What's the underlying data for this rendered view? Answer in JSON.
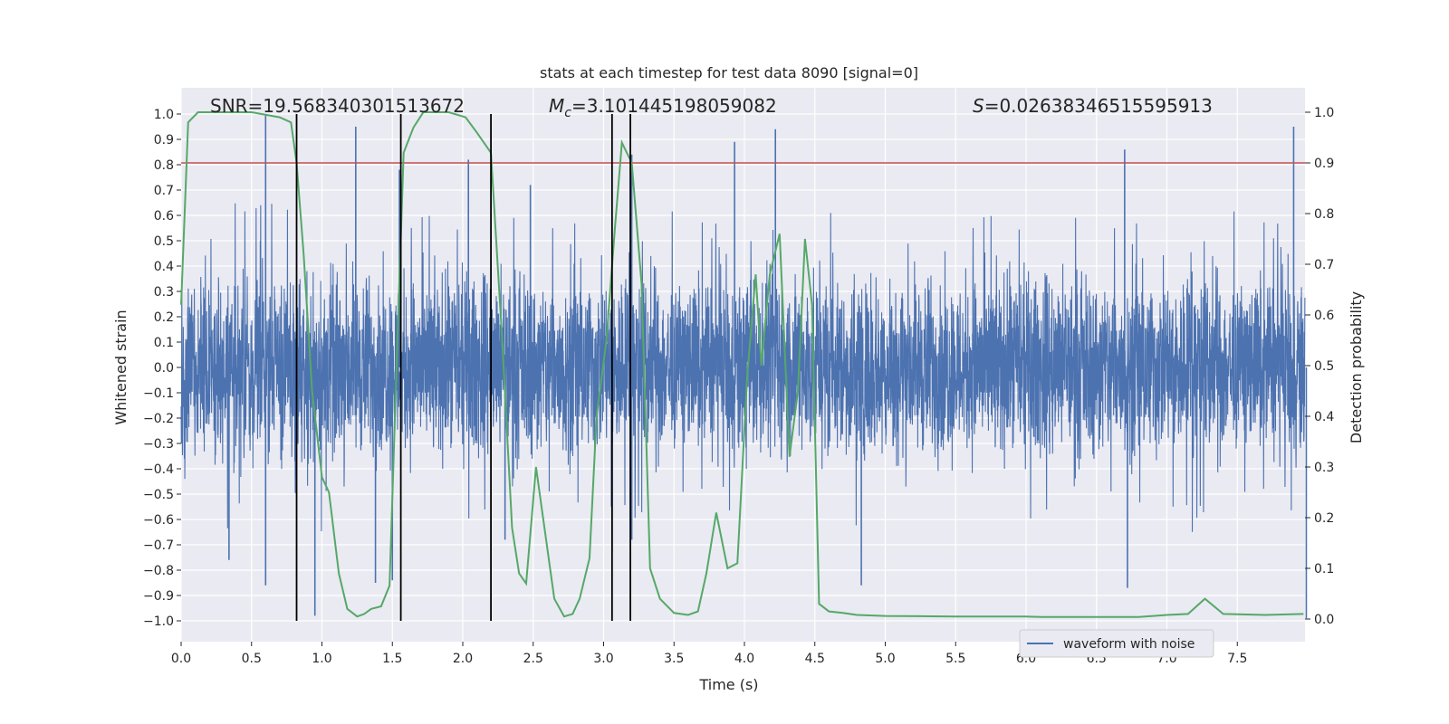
{
  "chart_data": {
    "type": "line",
    "title": "stats at each timestep for test data 8090 [signal=0]",
    "xlabel": "Time (s)",
    "ylabel": "Whitened strain",
    "ylabel_right": "Detection probability",
    "xlim": [
      0.0,
      7.98
    ],
    "ylim": [
      -1.1,
      1.1
    ],
    "ylim_right": [
      -0.01,
      1.03
    ],
    "x_ticks": [
      "0.0",
      "0.5",
      "1.0",
      "1.5",
      "2.0",
      "2.5",
      "3.0",
      "3.5",
      "4.0",
      "4.5",
      "5.0",
      "5.5",
      "6.0",
      "6.5",
      "7.0",
      "7.5"
    ],
    "y_ticks": [
      "1.0",
      "0.9",
      "0.8",
      "0.7",
      "0.6",
      "0.5",
      "0.4",
      "0.3",
      "0.2",
      "0.1",
      "0.0",
      "−0.1",
      "−0.2",
      "−0.3",
      "−0.4",
      "−0.5",
      "−0.6",
      "−0.7",
      "−0.8",
      "−0.9",
      "−1.0"
    ],
    "y_right_ticks": [
      "1.0",
      "0.9",
      "0.8",
      "0.7",
      "0.6",
      "0.5",
      "0.4",
      "0.3",
      "0.2",
      "0.1",
      "0.0"
    ],
    "stats": {
      "snr": "SNR=19.568340301513672",
      "mc_symbol": "M",
      "mc_subscript": "c",
      "mc_value": "=3.101445198059082",
      "s_symbol": "S",
      "s_value": "=0.02638346515595913"
    },
    "threshold": 0.9,
    "threshold_color": "#c44e52",
    "vertical_lines": [
      0.82,
      1.56,
      2.2,
      3.06,
      3.19
    ],
    "waveform": {
      "name": "waveform with noise",
      "color": "#4c72b0",
      "noise_envelope": [
        -0.45,
        0.45
      ],
      "spikes": [
        [
          0.6,
          1.0
        ],
        [
          1.24,
          0.95
        ],
        [
          1.55,
          0.78
        ],
        [
          2.04,
          0.82
        ],
        [
          2.48,
          0.72
        ],
        [
          3.2,
          0.84
        ],
        [
          3.93,
          0.89
        ],
        [
          4.22,
          0.94
        ],
        [
          6.7,
          0.86
        ],
        [
          7.9,
          0.95
        ],
        [
          0.34,
          -0.76
        ],
        [
          0.6,
          -0.86
        ],
        [
          0.95,
          -0.98
        ],
        [
          1.38,
          -0.85
        ],
        [
          1.5,
          -0.84
        ],
        [
          2.3,
          -0.68
        ],
        [
          3.06,
          -0.73
        ],
        [
          3.2,
          -0.68
        ],
        [
          4.83,
          -0.86
        ],
        [
          6.72,
          -0.87
        ],
        [
          7.99,
          -0.99
        ]
      ]
    },
    "detection_probability": {
      "color": "#55a868",
      "x": [
        0.0,
        0.05,
        0.12,
        0.25,
        0.5,
        0.7,
        0.78,
        0.82,
        0.87,
        0.93,
        1.0,
        1.05,
        1.12,
        1.18,
        1.25,
        1.3,
        1.35,
        1.42,
        1.48,
        1.53,
        1.58,
        1.65,
        1.72,
        1.8,
        1.9,
        2.02,
        2.1,
        2.2,
        2.28,
        2.35,
        2.4,
        2.45,
        2.52,
        2.57,
        2.65,
        2.72,
        2.78,
        2.83,
        2.9,
        2.95,
        3.02,
        3.08,
        3.13,
        3.2,
        3.27,
        3.33,
        3.4,
        3.5,
        3.6,
        3.67,
        3.73,
        3.8,
        3.88,
        3.95,
        4.02,
        4.08,
        4.12,
        4.18,
        4.25,
        4.32,
        4.38,
        4.43,
        4.48,
        4.53,
        4.6,
        4.7,
        4.8,
        5.0,
        5.5,
        6.0,
        6.1,
        6.5,
        6.8,
        7.0,
        7.15,
        7.27,
        7.4,
        7.7,
        7.97
      ],
      "y": [
        0.62,
        0.98,
        1.0,
        1.0,
        1.0,
        0.99,
        0.98,
        0.9,
        0.72,
        0.45,
        0.28,
        0.25,
        0.09,
        0.02,
        0.005,
        0.01,
        0.02,
        0.025,
        0.066,
        0.5,
        0.92,
        0.97,
        1.0,
        1.0,
        1.0,
        0.99,
        0.96,
        0.92,
        0.55,
        0.18,
        0.09,
        0.07,
        0.3,
        0.2,
        0.04,
        0.005,
        0.01,
        0.04,
        0.12,
        0.4,
        0.55,
        0.77,
        0.94,
        0.9,
        0.66,
        0.1,
        0.04,
        0.012,
        0.008,
        0.015,
        0.09,
        0.21,
        0.1,
        0.11,
        0.48,
        0.68,
        0.5,
        0.68,
        0.76,
        0.32,
        0.45,
        0.75,
        0.62,
        0.03,
        0.015,
        0.012,
        0.008,
        0.006,
        0.005,
        0.005,
        0.004,
        0.004,
        0.004,
        0.008,
        0.01,
        0.04,
        0.01,
        0.008,
        0.01
      ]
    },
    "legend": {
      "label": "waveform with noise",
      "position": "lower-center-right"
    }
  }
}
